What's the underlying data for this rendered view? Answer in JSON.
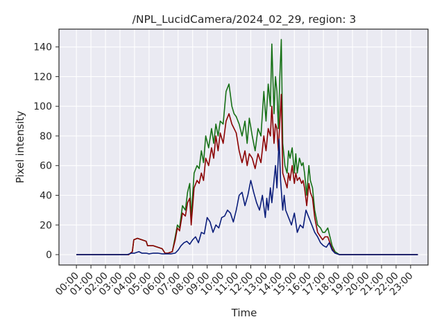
{
  "chart_data": {
    "type": "line",
    "title": "/NPL_LucidCamera/2024_02_29, region: 3",
    "xlabel": "Time",
    "ylabel": "Pixel intensity",
    "x_unit": "hour",
    "xlim": [
      -1.2,
      24.2
    ],
    "ylim": [
      -7,
      152
    ],
    "grid": true,
    "legend": "none",
    "x_ticks": [
      0,
      1,
      2,
      3,
      4,
      5,
      6,
      7,
      8,
      9,
      10,
      11,
      12,
      13,
      14,
      15,
      16,
      17,
      18,
      19,
      20,
      21,
      22,
      23
    ],
    "x_tick_labels": [
      "00:00",
      "01:00",
      "02:00",
      "03:00",
      "04:00",
      "05:00",
      "06:00",
      "07:00",
      "08:00",
      "09:00",
      "10:00",
      "11:00",
      "12:00",
      "13:00",
      "14:00",
      "15:00",
      "16:00",
      "17:00",
      "18:00",
      "19:00",
      "20:00",
      "21:00",
      "22:00",
      "23:00"
    ],
    "y_ticks": [
      0,
      20,
      40,
      60,
      80,
      100,
      120,
      140
    ],
    "y_tick_labels": [
      "0",
      "20",
      "40",
      "60",
      "80",
      "100",
      "120",
      "140"
    ],
    "colors": {
      "red": "#8b0000",
      "green": "#167016",
      "blue": "#0a1d7a",
      "plot_bg": "#eaeaf2",
      "grid": "#ffffff"
    },
    "series": [
      {
        "color": "#167016",
        "x": [
          0,
          3.6,
          3.85,
          3.95,
          4.2,
          4.5,
          4.8,
          4.9,
          5.3,
          5.6,
          5.9,
          6.1,
          6.3,
          6.6,
          6.8,
          6.95,
          7.1,
          7.3,
          7.5,
          7.65,
          7.8,
          7.9,
          8.1,
          8.3,
          8.45,
          8.6,
          8.75,
          8.9,
          9.1,
          9.3,
          9.45,
          9.6,
          9.75,
          9.9,
          10.1,
          10.3,
          10.5,
          10.7,
          10.85,
          11.0,
          11.2,
          11.4,
          11.6,
          11.75,
          11.9,
          12.1,
          12.3,
          12.5,
          12.7,
          12.9,
          13.05,
          13.2,
          13.35,
          13.45,
          13.6,
          13.7,
          13.8,
          13.9,
          14.0,
          14.1,
          14.2,
          14.35,
          14.5,
          14.6,
          14.7,
          14.85,
          15.0,
          15.1,
          15.2,
          15.35,
          15.5,
          15.6,
          15.7,
          15.85,
          16.0,
          16.1,
          16.25,
          16.4,
          16.6,
          16.8,
          16.95,
          17.1,
          17.3,
          17.45,
          17.6,
          17.8,
          18.1,
          19,
          21,
          23.5
        ],
        "y": [
          0,
          0,
          2,
          10,
          11,
          10,
          9,
          6,
          6,
          5,
          4,
          1,
          1,
          2,
          12,
          20,
          18,
          33,
          30,
          42,
          48,
          25,
          55,
          60,
          58,
          70,
          62,
          80,
          72,
          85,
          75,
          88,
          80,
          90,
          88,
          110,
          115,
          100,
          95,
          93,
          88,
          80,
          90,
          75,
          92,
          80,
          70,
          85,
          80,
          110,
          90,
          115,
          100,
          142,
          95,
          120,
          110,
          85,
          120,
          145,
          75,
          60,
          55,
          70,
          65,
          72,
          55,
          68,
          55,
          65,
          60,
          62,
          55,
          40,
          60,
          50,
          45,
          30,
          20,
          18,
          15,
          15,
          18,
          12,
          6,
          2,
          0,
          0,
          0,
          0
        ]
      },
      {
        "color": "#8b0000",
        "x": [
          0,
          3.6,
          3.85,
          3.95,
          4.2,
          4.5,
          4.8,
          4.9,
          5.3,
          5.6,
          5.9,
          6.1,
          6.3,
          6.6,
          6.8,
          6.95,
          7.1,
          7.3,
          7.5,
          7.65,
          7.8,
          7.9,
          8.1,
          8.3,
          8.45,
          8.6,
          8.75,
          8.9,
          9.1,
          9.3,
          9.45,
          9.6,
          9.75,
          9.9,
          10.1,
          10.3,
          10.5,
          10.7,
          10.85,
          11.0,
          11.2,
          11.4,
          11.6,
          11.75,
          11.9,
          12.1,
          12.3,
          12.5,
          12.7,
          12.9,
          13.05,
          13.2,
          13.35,
          13.45,
          13.6,
          13.7,
          13.8,
          13.9,
          14.0,
          14.1,
          14.2,
          14.35,
          14.5,
          14.6,
          14.7,
          14.85,
          15.0,
          15.1,
          15.2,
          15.35,
          15.5,
          15.6,
          15.7,
          15.85,
          16.0,
          16.1,
          16.25,
          16.4,
          16.6,
          16.8,
          16.95,
          17.1,
          17.3,
          17.45,
          17.6,
          17.8,
          18.1,
          19,
          21,
          23.5
        ],
        "y": [
          0,
          0,
          2,
          10,
          11,
          10,
          9,
          6,
          6,
          5,
          4,
          1,
          1,
          2,
          10,
          18,
          16,
          28,
          26,
          35,
          38,
          20,
          45,
          50,
          48,
          55,
          50,
          65,
          60,
          72,
          65,
          80,
          70,
          82,
          75,
          90,
          95,
          88,
          85,
          82,
          70,
          62,
          70,
          60,
          68,
          65,
          58,
          68,
          62,
          80,
          70,
          85,
          80,
          100,
          75,
          88,
          85,
          70,
          90,
          108,
          55,
          50,
          45,
          55,
          50,
          60,
          48,
          55,
          50,
          52,
          48,
          50,
          45,
          33,
          48,
          42,
          38,
          25,
          15,
          12,
          10,
          12,
          12,
          8,
          4,
          1,
          0,
          0,
          0,
          0
        ]
      },
      {
        "color": "#0a1d7a",
        "x": [
          0,
          3.5,
          3.8,
          4.0,
          4.3,
          4.5,
          4.8,
          5.0,
          5.3,
          5.6,
          5.9,
          6.2,
          6.5,
          6.8,
          7.0,
          7.2,
          7.4,
          7.6,
          7.8,
          8.0,
          8.2,
          8.4,
          8.6,
          8.8,
          9.0,
          9.2,
          9.4,
          9.6,
          9.8,
          10.0,
          10.2,
          10.4,
          10.6,
          10.8,
          11.0,
          11.2,
          11.4,
          11.6,
          11.8,
          12.0,
          12.2,
          12.4,
          12.6,
          12.8,
          13.0,
          13.1,
          13.2,
          13.35,
          13.45,
          13.6,
          13.7,
          13.8,
          13.95,
          14.05,
          14.2,
          14.3,
          14.4,
          14.6,
          14.8,
          15.0,
          15.2,
          15.4,
          15.6,
          15.8,
          16.0,
          16.2,
          16.4,
          16.6,
          16.8,
          17.0,
          17.2,
          17.4,
          17.6,
          17.8,
          18.1,
          19,
          21,
          23.5
        ],
        "y": [
          0,
          0,
          1,
          1,
          2,
          1,
          1,
          0.5,
          1,
          1,
          0.5,
          0.5,
          0.5,
          1,
          3,
          6,
          8,
          9,
          7,
          10,
          12,
          8,
          15,
          14,
          25,
          22,
          15,
          20,
          18,
          25,
          26,
          30,
          28,
          22,
          30,
          40,
          42,
          33,
          40,
          50,
          42,
          35,
          30,
          40,
          25,
          38,
          30,
          45,
          35,
          50,
          60,
          45,
          78,
          50,
          30,
          40,
          30,
          25,
          20,
          28,
          15,
          20,
          18,
          30,
          25,
          20,
          15,
          12,
          8,
          6,
          5,
          8,
          3,
          1,
          0,
          0,
          0,
          0
        ]
      }
    ]
  }
}
